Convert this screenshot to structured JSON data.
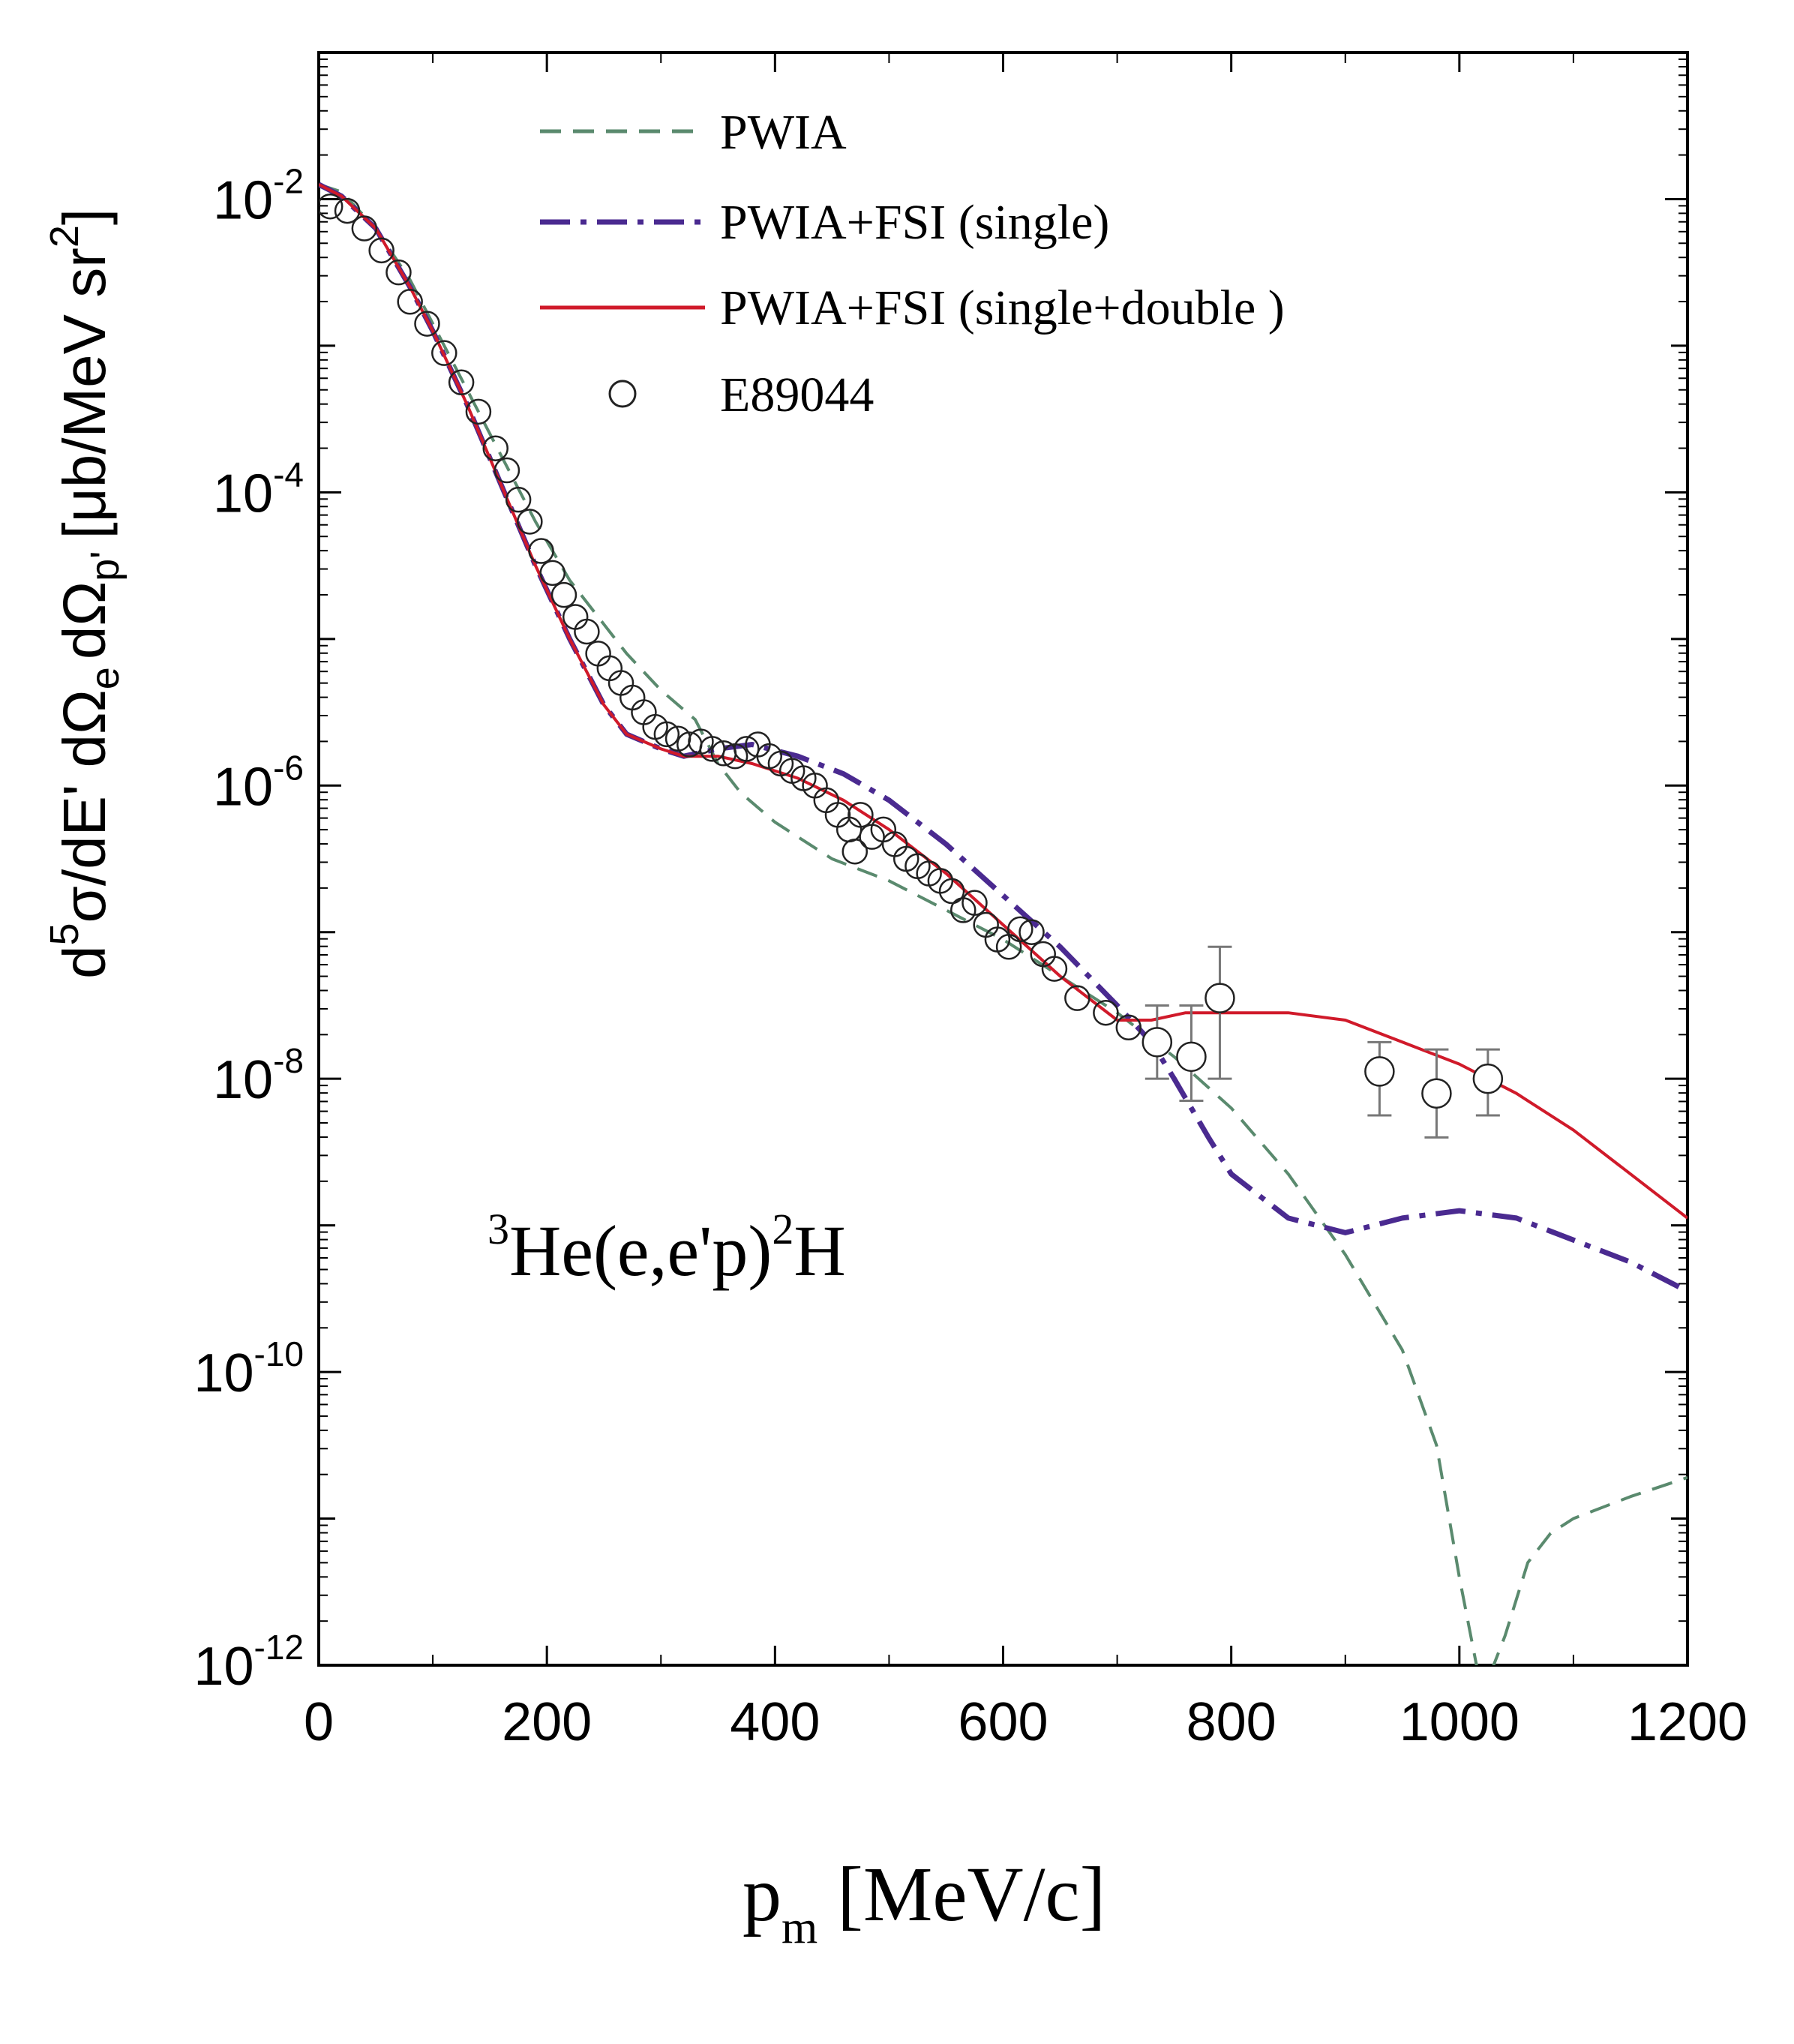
{
  "chart_data": {
    "type": "line",
    "title": "",
    "xlabel": "p",
    "xlabel_sub": "m",
    "xlabel_units": "[MeV/c]",
    "ylabel_parts": {
      "d": "d",
      "sup5": "5",
      "sigma_dE": "σ/dE' dΩ",
      "sub_e": "e",
      "dOmega": "dΩ",
      "sub_p": "p'",
      "units": "[μb/MeV sr",
      "sup2": "2",
      "close": "]"
    },
    "x_range": [
      0,
      1200
    ],
    "y_range_log10": [
      -12,
      -1
    ],
    "x_ticks": [
      0,
      200,
      400,
      600,
      800,
      1000,
      1200
    ],
    "x_tick_labels": [
      "0",
      "200",
      "400",
      "600",
      "800",
      "1000",
      "1200"
    ],
    "y_ticks_log10": [
      -2,
      -4,
      -6,
      -8,
      -10,
      -12
    ],
    "y_tick_base": "10",
    "y_tick_exponents": [
      "-2",
      "-4",
      "-6",
      "-8",
      "-10",
      "-12"
    ],
    "annotation": {
      "sup3": "3",
      "main": "He(e,e'p)",
      "sup2": "2",
      "tail": "H"
    },
    "legend_position": "top",
    "series": [
      {
        "name": "PWIA",
        "style": "dashed",
        "color": "#5a8a6e",
        "x": [
          0,
          20,
          50,
          80,
          100,
          130,
          160,
          190,
          220,
          250,
          270,
          300,
          330,
          350,
          370,
          400,
          450,
          500,
          550,
          600,
          650,
          700,
          750,
          800,
          850,
          900,
          950,
          980,
          1000,
          1020,
          1040,
          1060,
          1080,
          1100,
          1150,
          1200
        ],
        "y_log10": [
          -1.9,
          -1.95,
          -2.2,
          -2.55,
          -2.85,
          -3.3,
          -3.75,
          -4.2,
          -4.6,
          -4.9,
          -5.1,
          -5.35,
          -5.55,
          -5.85,
          -6.05,
          -6.25,
          -6.5,
          -6.65,
          -6.85,
          -7.05,
          -7.3,
          -7.55,
          -7.85,
          -8.2,
          -8.65,
          -9.2,
          -9.85,
          -10.5,
          -11.4,
          -12.2,
          -11.8,
          -11.3,
          -11.1,
          -11.0,
          -10.85,
          -10.72
        ]
      },
      {
        "name": "PWIA+FSI (single)",
        "style": "dashdot",
        "color": "#4a2a90",
        "x": [
          0,
          20,
          50,
          80,
          100,
          130,
          160,
          190,
          220,
          250,
          270,
          300,
          320,
          350,
          380,
          420,
          460,
          500,
          550,
          600,
          650,
          700,
          730,
          750,
          780,
          800,
          850,
          900,
          950,
          1000,
          1050,
          1100,
          1150,
          1200
        ],
        "y_log10": [
          -1.9,
          -1.98,
          -2.2,
          -2.6,
          -2.9,
          -3.4,
          -3.95,
          -4.5,
          -5.0,
          -5.45,
          -5.65,
          -5.75,
          -5.8,
          -5.75,
          -5.72,
          -5.8,
          -5.92,
          -6.1,
          -6.4,
          -6.75,
          -7.1,
          -7.5,
          -7.75,
          -8.0,
          -8.4,
          -8.65,
          -8.95,
          -9.05,
          -8.95,
          -8.9,
          -8.95,
          -9.1,
          -9.25,
          -9.45
        ]
      },
      {
        "name": "PWIA+FSI (single+double )",
        "style": "solid",
        "color": "#d01a2a",
        "x": [
          0,
          20,
          50,
          80,
          100,
          130,
          160,
          190,
          220,
          250,
          270,
          300,
          320,
          350,
          380,
          420,
          460,
          500,
          550,
          600,
          650,
          700,
          730,
          760,
          800,
          850,
          900,
          950,
          1000,
          1050,
          1100,
          1150,
          1200
        ],
        "y_log10": [
          -1.9,
          -1.98,
          -2.2,
          -2.6,
          -2.9,
          -3.4,
          -3.95,
          -4.5,
          -5.0,
          -5.45,
          -5.65,
          -5.75,
          -5.8,
          -5.8,
          -5.85,
          -5.95,
          -6.1,
          -6.3,
          -6.6,
          -6.95,
          -7.3,
          -7.6,
          -7.6,
          -7.55,
          -7.55,
          -7.55,
          -7.6,
          -7.75,
          -7.9,
          -8.1,
          -8.35,
          -8.65,
          -8.95
        ]
      }
    ],
    "data_points": {
      "name": "E89044",
      "marker": "open-circle",
      "x": [
        10,
        25,
        40,
        55,
        70,
        80,
        95,
        110,
        125,
        140,
        155,
        165,
        175,
        185,
        195,
        205,
        215,
        225,
        235,
        245,
        255,
        265,
        275,
        285,
        295,
        305,
        315,
        325,
        335,
        345,
        355,
        365,
        375,
        385,
        395,
        405,
        415,
        425,
        435,
        445,
        455,
        465,
        470,
        475,
        485,
        495,
        505,
        515,
        525,
        535,
        545,
        555,
        565,
        575,
        585,
        595,
        605,
        615,
        625,
        635,
        645,
        665,
        690,
        710
      ],
      "y_log10": [
        -2.05,
        -2.08,
        -2.2,
        -2.35,
        -2.5,
        -2.7,
        -2.85,
        -3.05,
        -3.25,
        -3.45,
        -3.7,
        -3.85,
        -4.05,
        -4.2,
        -4.4,
        -4.55,
        -4.7,
        -4.85,
        -4.95,
        -5.1,
        -5.2,
        -5.3,
        -5.4,
        -5.5,
        -5.6,
        -5.65,
        -5.68,
        -5.72,
        -5.7,
        -5.75,
        -5.78,
        -5.8,
        -5.75,
        -5.72,
        -5.8,
        -5.85,
        -5.9,
        -5.95,
        -6.0,
        -6.1,
        -6.2,
        -6.3,
        -6.45,
        -6.2,
        -6.35,
        -6.3,
        -6.4,
        -6.5,
        -6.55,
        -6.6,
        -6.65,
        -6.72,
        -6.85,
        -6.8,
        -6.95,
        -7.05,
        -7.1,
        -6.98,
        -7.0,
        -7.15,
        -7.25,
        -7.45,
        -7.55,
        -7.65
      ]
    },
    "error_points": {
      "x": [
        735,
        765,
        790,
        930,
        980,
        1025
      ],
      "y_log10": [
        -7.75,
        -7.85,
        -7.45,
        -7.95,
        -8.1,
        -8.0
      ],
      "err_lo": [
        -8.0,
        -8.15,
        -8.0,
        -8.25,
        -8.4,
        -8.25
      ],
      "err_hi": [
        -7.5,
        -7.5,
        -7.1,
        -7.75,
        -7.8,
        -7.8
      ]
    }
  }
}
